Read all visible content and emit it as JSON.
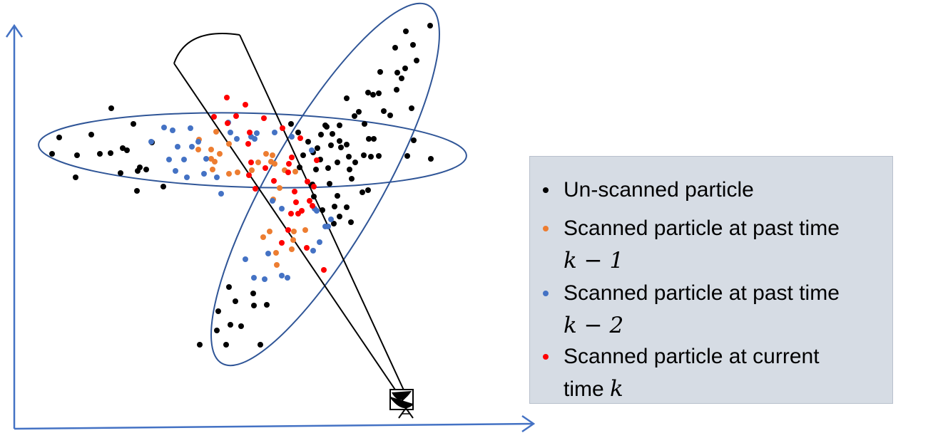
{
  "colors": {
    "axis": "#4472c4",
    "ellipse": "#2f5597",
    "beam": "#000000",
    "unscanned": "#000000",
    "past_k1": "#ed7d31",
    "past_k2": "#4472c4",
    "current": "#ff0000",
    "legend_bg": "#d6dce4"
  },
  "icons": [
    "radar-antenna-icon"
  ],
  "legend": {
    "items": [
      {
        "key": "unscanned",
        "line1": "Un-scanned particle",
        "math": ""
      },
      {
        "key": "past_k1",
        "line1": "Scanned particle at past time",
        "math": "k − 1"
      },
      {
        "key": "past_k2",
        "line1": "Scanned particle at past time",
        "math": "k − 2"
      },
      {
        "key": "current",
        "line1": "Scanned particle at current",
        "line2_prefix": "time",
        "math": "k"
      }
    ]
  }
}
